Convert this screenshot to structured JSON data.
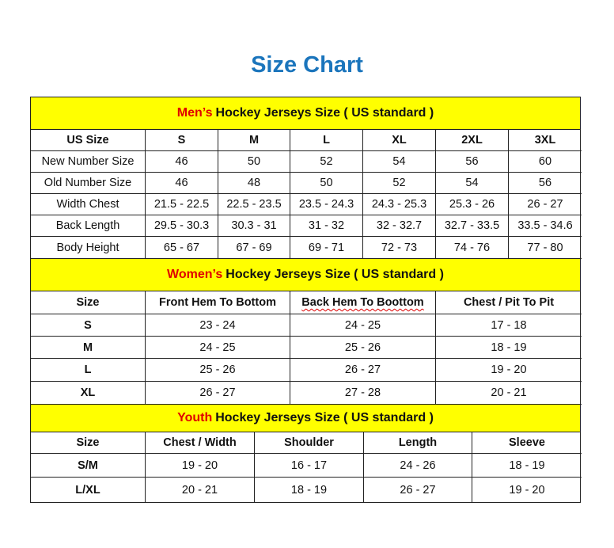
{
  "title": "Size Chart",
  "sections": [
    {
      "id": "men",
      "accent": "Men’s",
      "heading": "Hockey Jerseys Size ( US standard )",
      "columns": [
        "US Size",
        "S",
        "M",
        "L",
        "XL",
        "2XL",
        "3XL"
      ],
      "rows": [
        [
          "New Number Size",
          "46",
          "50",
          "52",
          "54",
          "56",
          "60"
        ],
        [
          "Old Number Size",
          "46",
          "48",
          "50",
          "52",
          "54",
          "56"
        ],
        [
          "Width Chest",
          "21.5 - 22.5",
          "22.5 - 23.5",
          "23.5 - 24.3",
          "24.3 - 25.3",
          "25.3 - 26",
          "26 - 27"
        ],
        [
          "Back Length",
          "29.5 - 30.3",
          "30.3 - 31",
          "31 - 32",
          "32 - 32.7",
          "32.7 - 33.5",
          "33.5 - 34.6"
        ],
        [
          "Body Height",
          "65 - 67",
          "67 - 69",
          "69 - 71",
          "72 - 73",
          "74 - 76",
          "77 - 80"
        ]
      ]
    },
    {
      "id": "women",
      "accent": "Women’s",
      "heading": "Hockey Jerseys Size ( US standard )",
      "columns": [
        "Size",
        "Front Hem To Bottom",
        "Back Hem To Boottom",
        "Chest / Pit To Pit"
      ],
      "rows": [
        [
          "S",
          "23 - 24",
          "24 - 25",
          "17 - 18"
        ],
        [
          "M",
          "24 - 25",
          "25 - 26",
          "18 - 19"
        ],
        [
          "L",
          "25 - 26",
          "26 - 27",
          "19 - 20"
        ],
        [
          "XL",
          "26 - 27",
          "27 - 28",
          "20 - 21"
        ]
      ]
    },
    {
      "id": "youth",
      "accent": "Youth",
      "heading": "Hockey Jerseys Size ( US standard )",
      "columns": [
        "Size",
        "Chest / Width",
        "Shoulder",
        "Length",
        "Sleeve"
      ],
      "rows": [
        [
          "S/M",
          "19 - 20",
          "16 - 17",
          "24 - 26",
          "18 - 19"
        ],
        [
          "L/XL",
          "20 - 21",
          "18 - 19",
          "26 - 27",
          "19 - 20"
        ]
      ]
    }
  ],
  "colors": {
    "title": "#1b75bc",
    "band": "#ffff00",
    "accent": "#e00000",
    "border": "#222222"
  }
}
